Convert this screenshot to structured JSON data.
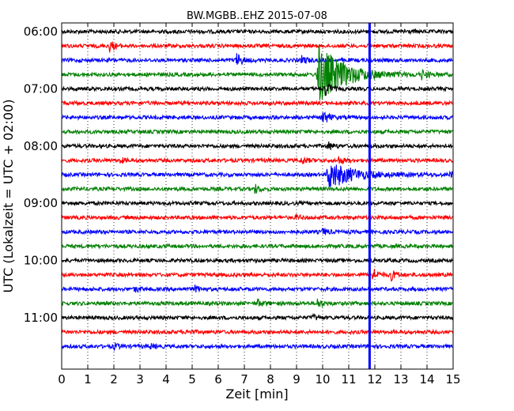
{
  "chart_data": {
    "type": "line",
    "title": "BW.MGBB..EHZ 2015-07-08",
    "xlabel": "Zeit  [min]",
    "ylabel": "UTC (Lokalzeit = UTC + 02:00)",
    "xlim": [
      0,
      15
    ],
    "x_ticks": [
      0,
      1,
      2,
      3,
      4,
      5,
      6,
      7,
      8,
      9,
      10,
      11,
      12,
      13,
      14,
      15
    ],
    "y_ticks": [
      "06:00",
      "07:00",
      "08:00",
      "09:00",
      "10:00",
      "11:00"
    ],
    "grid": "dotted vertical at each minute",
    "trace_minutes": 15,
    "trace_colors": [
      "#000000",
      "#ff0000",
      "#0000ff",
      "#008000"
    ],
    "traces": [
      {
        "start": "06:00",
        "events": [
          {
            "t": 13.1,
            "amp": 0.25
          }
        ]
      },
      {
        "start": "06:15",
        "events": [
          {
            "t": 1.8,
            "amp": 0.9
          }
        ]
      },
      {
        "start": "06:30",
        "events": [
          {
            "t": 6.7,
            "amp": 1.0
          },
          {
            "t": 9.2,
            "amp": 0.6
          }
        ]
      },
      {
        "start": "06:45",
        "events": [
          {
            "t": 9.8,
            "amp": 4.5
          },
          {
            "t": 13.8,
            "amp": 0.6
          }
        ]
      },
      {
        "start": "07:00",
        "events": [
          {
            "t": 10.1,
            "amp": 1.0
          }
        ]
      },
      {
        "start": "07:15",
        "events": []
      },
      {
        "start": "07:30",
        "events": [
          {
            "t": 10.0,
            "amp": 1.2
          }
        ]
      },
      {
        "start": "07:45",
        "events": []
      },
      {
        "start": "08:00",
        "events": [
          {
            "t": 10.2,
            "amp": 0.6
          }
        ]
      },
      {
        "start": "08:15",
        "events": [
          {
            "t": 2.2,
            "amp": 0.4
          },
          {
            "t": 9.2,
            "amp": 0.5
          },
          {
            "t": 10.6,
            "amp": 0.5
          }
        ]
      },
      {
        "start": "08:30",
        "events": [
          {
            "t": 10.2,
            "amp": 2.0
          },
          {
            "t": 14.9,
            "amp": 0.4
          }
        ]
      },
      {
        "start": "08:45",
        "events": [
          {
            "t": 7.4,
            "amp": 0.6
          }
        ]
      },
      {
        "start": "09:00",
        "events": []
      },
      {
        "start": "09:15",
        "events": [
          {
            "t": 9.0,
            "amp": 0.3
          }
        ]
      },
      {
        "start": "09:30",
        "events": [
          {
            "t": 10.0,
            "amp": 0.5
          }
        ]
      },
      {
        "start": "09:45",
        "events": []
      },
      {
        "start": "10:00",
        "events": []
      },
      {
        "start": "10:15",
        "events": [
          {
            "t": 11.9,
            "amp": 1.0
          },
          {
            "t": 12.6,
            "amp": 0.8
          }
        ]
      },
      {
        "start": "10:30",
        "events": [
          {
            "t": 2.8,
            "amp": 0.4
          },
          {
            "t": 5.1,
            "amp": 0.4
          }
        ]
      },
      {
        "start": "10:45",
        "events": [
          {
            "t": 7.5,
            "amp": 0.5
          },
          {
            "t": 9.8,
            "amp": 0.6
          }
        ]
      },
      {
        "start": "11:00",
        "events": [
          {
            "t": 9.6,
            "amp": 0.4
          }
        ]
      },
      {
        "start": "11:15",
        "events": [
          {
            "t": 4.8,
            "amp": 0.3
          }
        ]
      },
      {
        "start": "11:30",
        "events": [
          {
            "t": 2.0,
            "amp": 0.4
          },
          {
            "t": 3.4,
            "amp": 0.3
          }
        ]
      }
    ],
    "marker": {
      "t": 11.8,
      "color": "#0000ff"
    }
  }
}
